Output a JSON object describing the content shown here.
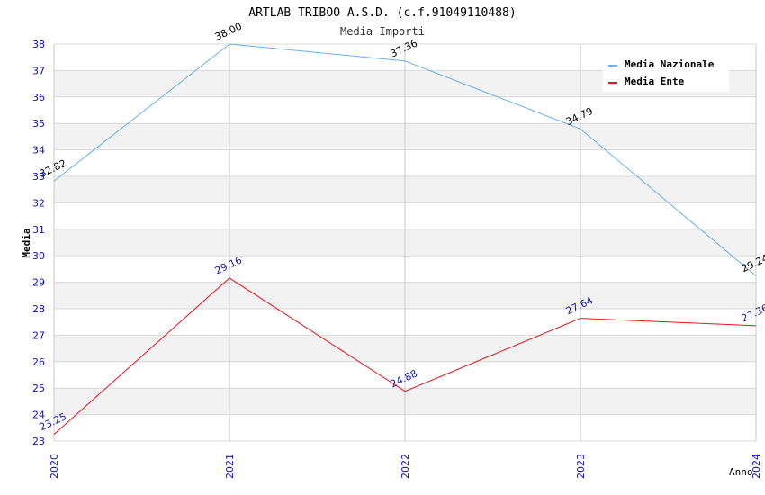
{
  "chart_data": {
    "type": "line",
    "title": "ARTLAB TRIBOO A.S.D. (c.f.91049110488)",
    "subtitle": "Media Importi",
    "xlabel": "Anno",
    "ylabel": "Media",
    "x": [
      "2020",
      "2021",
      "2022",
      "2023",
      "2024"
    ],
    "ylim": [
      23,
      38
    ],
    "yticks": [
      "23",
      "24",
      "25",
      "26",
      "27",
      "28",
      "29",
      "30",
      "31",
      "32",
      "33",
      "34",
      "35",
      "36",
      "37",
      "38"
    ],
    "grid": "horizontal alternating bands",
    "legend_position": "top-right",
    "series": [
      {
        "name": "Media Nazionale",
        "color": "#6aaee6",
        "values": [
          32.82,
          38.0,
          37.36,
          34.79,
          29.24
        ],
        "labels": [
          "32.82",
          "38.00",
          "37.36",
          "34.79",
          "29.24"
        ],
        "label_color": "#000000"
      },
      {
        "name": "Media Ente",
        "color": "#e8141c",
        "values": [
          23.25,
          29.16,
          24.88,
          27.64,
          27.36
        ],
        "labels": [
          "23.25",
          "29.16",
          "24.88",
          "27.64",
          "27.36"
        ],
        "label_color": "#1a1aa0"
      }
    ],
    "colors": {
      "tick_text": "#1010c0",
      "band": "#f2f2f2",
      "grid_line": "#d8d8d8",
      "axis": "#c8c8c8"
    }
  }
}
